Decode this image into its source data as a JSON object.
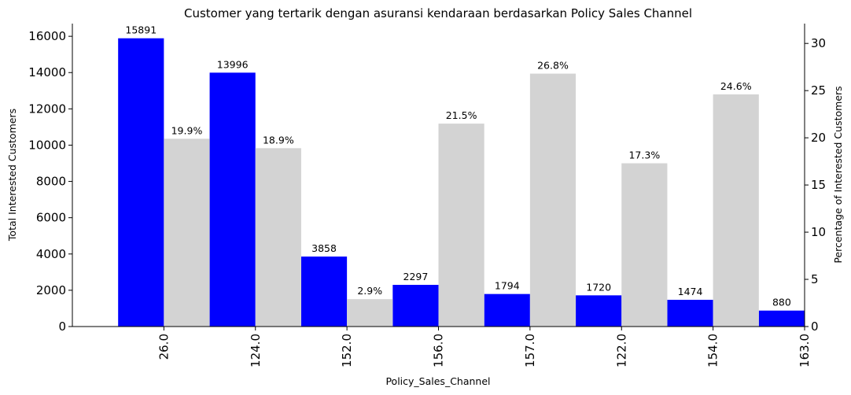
{
  "chart_data": {
    "type": "bar",
    "title": "Customer yang tertarik dengan asuransi kendaraan berdasarkan Policy Sales Channel",
    "xlabel": "Policy_Sales_Channel",
    "ylabel": "Total Interested Customers",
    "y2label": "Percentage of Interested Customers",
    "categories": [
      "26.0",
      "124.0",
      "152.0",
      "156.0",
      "157.0",
      "122.0",
      "154.0",
      "163.0"
    ],
    "series": [
      {
        "name": "Total Interested Customers",
        "color": "#0000ff",
        "values": [
          15891,
          13996,
          3858,
          2297,
          1794,
          1720,
          1474,
          880
        ]
      },
      {
        "name": "Percentage of Interested Customers",
        "color": "#d3d3d3",
        "axis": "y2",
        "values": [
          19.9,
          18.9,
          2.9,
          21.5,
          26.8,
          17.3,
          24.6,
          null
        ],
        "value_labels": [
          "19.9%",
          "18.9%",
          "2.9%",
          "21.5%",
          "26.8%",
          "17.3%",
          "24.6%",
          null
        ]
      }
    ],
    "ylim": [
      0,
      16700
    ],
    "yticks": [
      0,
      2000,
      4000,
      6000,
      8000,
      10000,
      12000,
      14000,
      16000
    ],
    "y2lim": [
      0,
      32.1
    ],
    "y2ticks": [
      0,
      5,
      10,
      15,
      20,
      25,
      30
    ]
  }
}
